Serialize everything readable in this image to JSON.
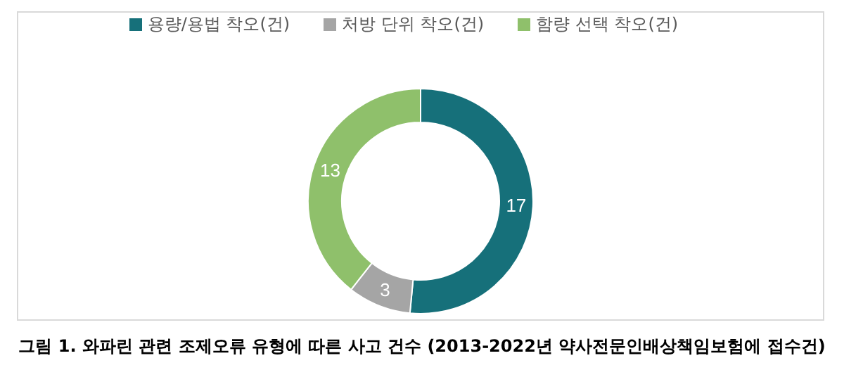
{
  "chart_data": {
    "type": "donut",
    "categories": [
      "용량/용법 착오(건)",
      "처방 단위 착오(건)",
      "함량 선택 착오(건)"
    ],
    "values": [
      17,
      3,
      13
    ],
    "colors": [
      "#16707a",
      "#a5a5a5",
      "#8fc06b"
    ],
    "data_labels": true,
    "legend": "top",
    "annotations": [
      "그림 1. 와파린 관련 조제오류 유형에 따른 사고 건수 (2013-2022년 약사전문인배상책임보험에 접수건)"
    ]
  }
}
